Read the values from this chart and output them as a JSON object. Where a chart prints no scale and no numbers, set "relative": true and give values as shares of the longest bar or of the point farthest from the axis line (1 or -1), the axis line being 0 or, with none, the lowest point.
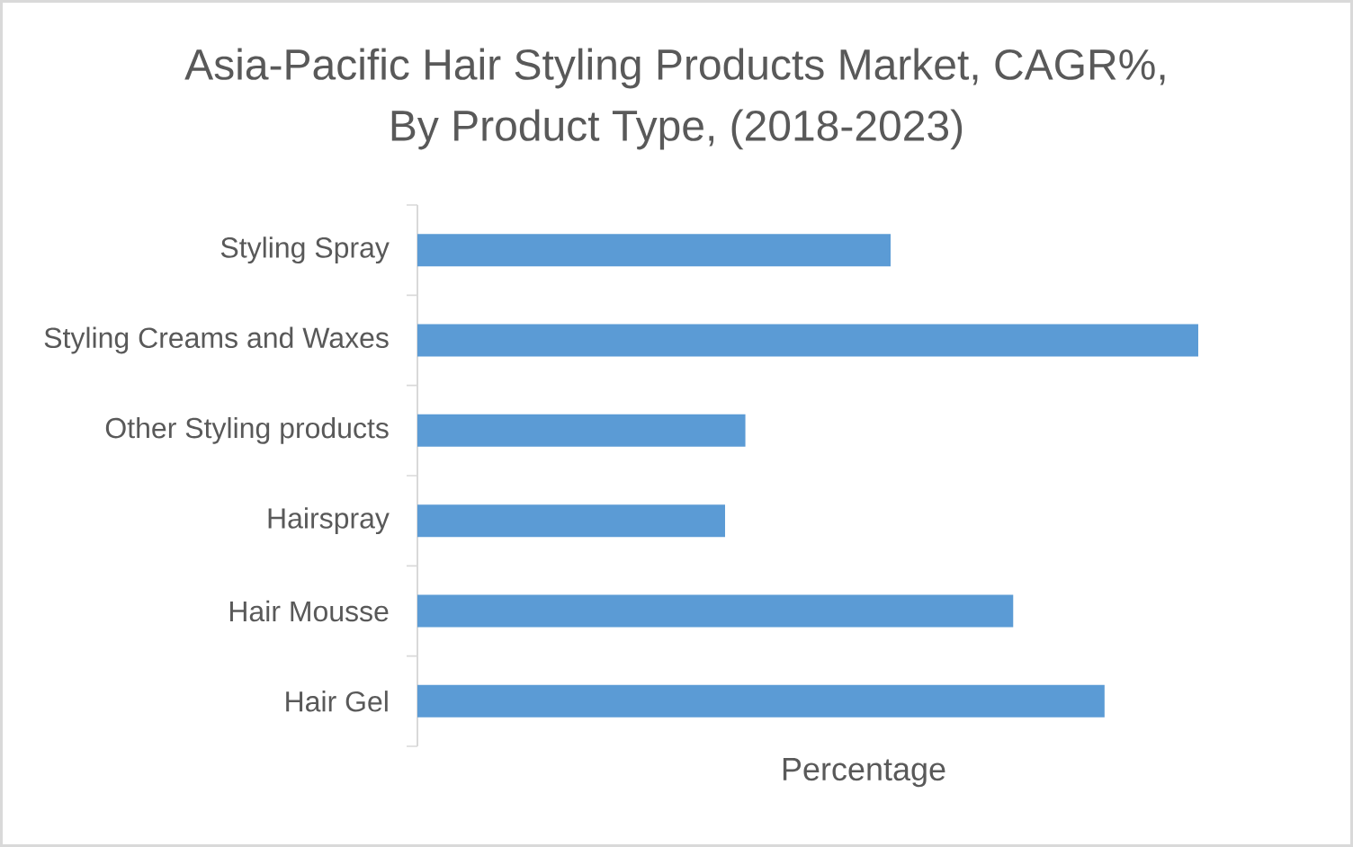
{
  "chart_data": {
    "type": "bar",
    "orientation": "horizontal",
    "relative": true,
    "title": "Asia-Pacific Hair Styling Products Market, CAGR%, By Product Type, (2018-2023)",
    "xlabel": "Percentage",
    "categories": [
      "Styling Spray",
      "Styling Creams and Waxes",
      "Other Styling products",
      "Hairspray",
      "Hair Mousse",
      "Hair Gel"
    ],
    "values": [
      0.606,
      1,
      0.42,
      0.394,
      0.763,
      0.88
    ],
    "color": "#5b9bd5"
  }
}
